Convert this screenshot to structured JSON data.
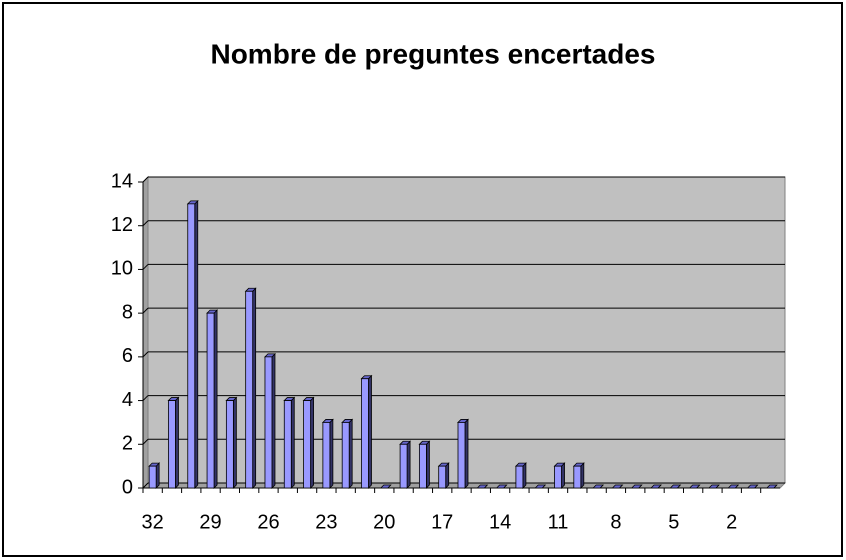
{
  "chart_data": {
    "type": "bar",
    "title": "Nombre de preguntes encertades",
    "categories": [
      32,
      null,
      null,
      29,
      null,
      null,
      26,
      null,
      null,
      23,
      null,
      null,
      20,
      null,
      null,
      17,
      null,
      null,
      14,
      null,
      null,
      11,
      null,
      null,
      8,
      null,
      null,
      5,
      null,
      null,
      2,
      null,
      null
    ],
    "values": [
      1,
      4,
      13,
      8,
      4,
      9,
      6,
      4,
      4,
      3,
      3,
      5,
      0,
      2,
      2,
      1,
      3,
      0,
      0,
      1,
      0,
      1,
      1,
      0,
      0,
      0,
      0,
      0,
      0,
      0,
      0,
      0,
      0
    ],
    "color": "#9999ff",
    "ylim": [
      0,
      14
    ],
    "yticks": [
      0,
      2,
      4,
      6,
      8,
      10,
      12,
      14
    ],
    "grid": true
  }
}
